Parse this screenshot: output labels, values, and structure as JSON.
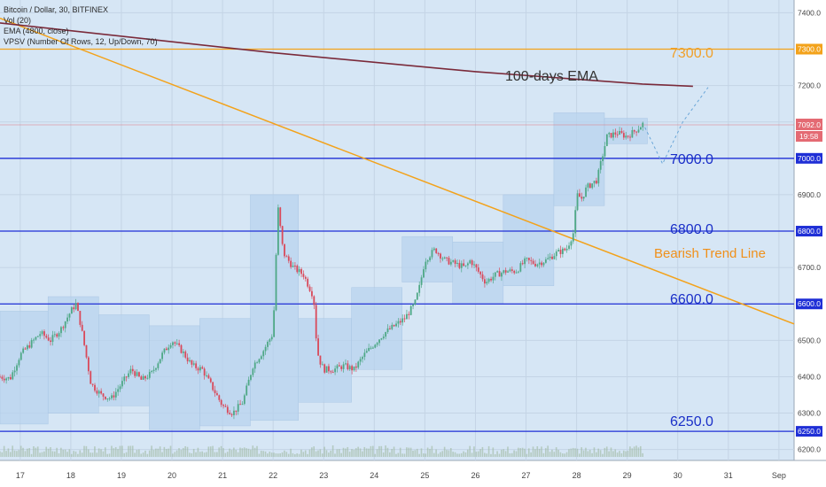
{
  "legend": {
    "title": "Bitcoin / Dollar, 30, BITFINEX",
    "vol": "Vol (20)",
    "ema": "EMA (4800, close)",
    "vpsv": "VPSV (Number Of Rows, 12, Up/Down, 70)"
  },
  "annotations": {
    "ema_label": "100-days EMA",
    "trend_label": "Bearish Trend Line",
    "level_7300": "7300.0",
    "level_7000": "7000.0",
    "level_6800": "6800.0",
    "level_6600": "6600.0",
    "level_6250": "6250.0"
  },
  "price_badges": {
    "current": "7092.0",
    "countdown": "19:58"
  },
  "colors": {
    "background": "#d6e6f5",
    "horizontal_level": "#1f2fd6",
    "resistance_7300": "#f3a21a",
    "trend_line": "#f3a21a",
    "ema_line": "#7a2a3a",
    "candle_up": "#4ea886",
    "candle_down": "#d9495a",
    "current_price": "#e46a73"
  },
  "chart_data": {
    "type": "candlestick",
    "y_axis": {
      "ticks": [
        "7400.0",
        "7300.0",
        "7200.0",
        "7100.0",
        "7000.0",
        "6900.0",
        "6800.0",
        "6700.0",
        "6600.0",
        "6500.0",
        "6400.0",
        "6300.0",
        "6250.0",
        "6200.0"
      ],
      "range": [
        6170,
        7435
      ]
    },
    "x_axis": {
      "ticks": [
        "17",
        "18",
        "19",
        "20",
        "21",
        "22",
        "23",
        "24",
        "25",
        "26",
        "27",
        "28",
        "29",
        "30",
        "31",
        "Sep"
      ],
      "range_days": [
        16.6,
        32.3
      ]
    },
    "horizontal_levels": [
      7300,
      7000,
      6800,
      6600,
      6250
    ],
    "ema_line": [
      [
        16.6,
        7372
      ],
      [
        22.0,
        7290
      ],
      [
        26.0,
        7238
      ],
      [
        29.3,
        7204
      ],
      [
        30.3,
        7198
      ]
    ],
    "trend_line": [
      [
        16.6,
        7385
      ],
      [
        32.3,
        6545
      ]
    ],
    "price_series": [
      [
        16.6,
        6400
      ],
      [
        16.8,
        6395
      ],
      [
        17.0,
        6460
      ],
      [
        17.2,
        6490
      ],
      [
        17.4,
        6520
      ],
      [
        17.6,
        6500
      ],
      [
        17.8,
        6530
      ],
      [
        18.0,
        6580
      ],
      [
        18.1,
        6600
      ],
      [
        18.2,
        6540
      ],
      [
        18.4,
        6380
      ],
      [
        18.6,
        6350
      ],
      [
        18.8,
        6340
      ],
      [
        19.0,
        6380
      ],
      [
        19.2,
        6420
      ],
      [
        19.4,
        6390
      ],
      [
        19.6,
        6410
      ],
      [
        19.8,
        6460
      ],
      [
        20.0,
        6500
      ],
      [
        20.2,
        6470
      ],
      [
        20.4,
        6430
      ],
      [
        20.6,
        6420
      ],
      [
        20.8,
        6370
      ],
      [
        21.0,
        6320
      ],
      [
        21.2,
        6300
      ],
      [
        21.4,
        6330
      ],
      [
        21.6,
        6430
      ],
      [
        21.8,
        6470
      ],
      [
        22.0,
        6520
      ],
      [
        22.05,
        6710
      ],
      [
        22.1,
        6860
      ],
      [
        22.2,
        6740
      ],
      [
        22.4,
        6700
      ],
      [
        22.6,
        6680
      ],
      [
        22.8,
        6620
      ],
      [
        22.85,
        6510
      ],
      [
        22.9,
        6450
      ],
      [
        23.0,
        6420
      ],
      [
        23.2,
        6420
      ],
      [
        23.4,
        6430
      ],
      [
        23.6,
        6420
      ],
      [
        23.8,
        6460
      ],
      [
        24.0,
        6490
      ],
      [
        24.2,
        6520
      ],
      [
        24.4,
        6540
      ],
      [
        24.6,
        6560
      ],
      [
        24.8,
        6600
      ],
      [
        24.9,
        6650
      ],
      [
        25.0,
        6720
      ],
      [
        25.2,
        6750
      ],
      [
        25.4,
        6720
      ],
      [
        25.6,
        6710
      ],
      [
        25.8,
        6700
      ],
      [
        25.9,
        6720
      ],
      [
        26.0,
        6700
      ],
      [
        26.2,
        6660
      ],
      [
        26.4,
        6680
      ],
      [
        26.6,
        6690
      ],
      [
        26.8,
        6690
      ],
      [
        27.0,
        6720
      ],
      [
        27.2,
        6710
      ],
      [
        27.4,
        6720
      ],
      [
        27.6,
        6740
      ],
      [
        27.8,
        6750
      ],
      [
        27.95,
        6800
      ],
      [
        28.0,
        6900
      ],
      [
        28.1,
        6890
      ],
      [
        28.2,
        6920
      ],
      [
        28.4,
        6940
      ],
      [
        28.6,
        7060
      ],
      [
        28.8,
        7070
      ],
      [
        29.0,
        7060
      ],
      [
        29.2,
        7080
      ],
      [
        29.35,
        7100
      ]
    ],
    "projection": [
      [
        29.35,
        7085
      ],
      [
        29.7,
        6985
      ],
      [
        30.1,
        7100
      ],
      [
        30.6,
        7195
      ]
    ],
    "current_price": 7092.0
  }
}
